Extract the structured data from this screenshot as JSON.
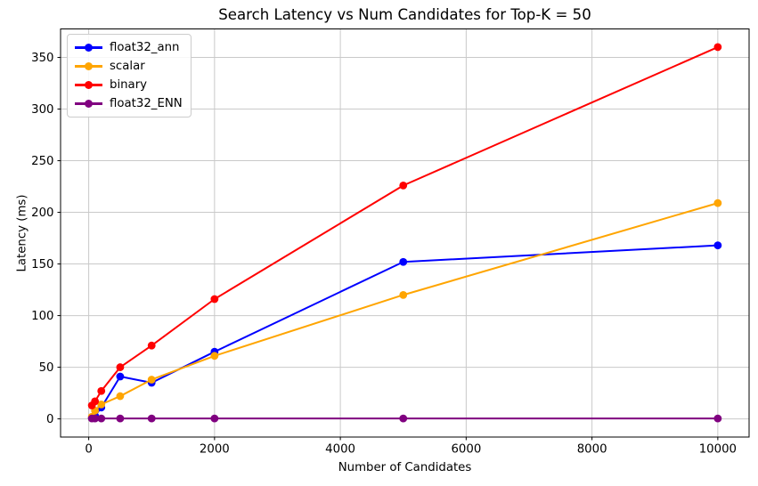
{
  "chart_data": {
    "type": "line",
    "title": "Search Latency vs Num Candidates for Top-K = 50",
    "xlabel": "Number of Candidates",
    "ylabel": "Latency (ms)",
    "x": [
      50,
      100,
      200,
      500,
      1000,
      2000,
      5000,
      10000
    ],
    "series": [
      {
        "name": "float32_ann",
        "color": "#0000ff",
        "values": [
          1,
          3,
          11,
          41,
          35,
          65,
          152,
          168
        ]
      },
      {
        "name": "scalar",
        "color": "#ffa500",
        "values": [
          2,
          8,
          14,
          22,
          38,
          61,
          120,
          209
        ]
      },
      {
        "name": "binary",
        "color": "#ff0000",
        "values": [
          13,
          17,
          27,
          50,
          71,
          116,
          226,
          360
        ]
      },
      {
        "name": "float32_ENN",
        "color": "#800080",
        "values": [
          0.4,
          0.4,
          0.4,
          0.4,
          0.4,
          0.4,
          0.4,
          0.4
        ]
      }
    ],
    "x_ticks": [
      0,
      2000,
      4000,
      6000,
      8000,
      10000
    ],
    "y_ticks": [
      0,
      50,
      100,
      150,
      200,
      250,
      300,
      350
    ],
    "xlim": [
      -447.5,
      10497.5
    ],
    "ylim": [
      -17.6,
      377.6
    ],
    "grid": true,
    "grid_color": "#c9c9c9",
    "legend_position": "upper left",
    "marker": "o"
  }
}
